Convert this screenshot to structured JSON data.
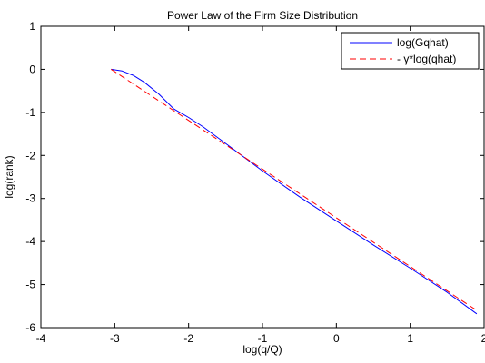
{
  "chart_data": {
    "type": "line",
    "title": "Power Law of the Firm Size Distribution",
    "xlabel": "log(q/Q)",
    "ylabel": "log(rank)",
    "xlim": [
      -4,
      2
    ],
    "ylim": [
      -6,
      1
    ],
    "xticks": [
      -4,
      -3,
      -2,
      -1,
      0,
      1,
      2
    ],
    "yticks": [
      -6,
      -5,
      -4,
      -3,
      -2,
      -1,
      0,
      1
    ],
    "grid": false,
    "legend": {
      "position": "top-right"
    },
    "series": [
      {
        "name": "log(Gqhat)",
        "color": "#0000ff",
        "style": "solid",
        "points": [
          [
            -3.05,
            0.0
          ],
          [
            -2.9,
            -0.04
          ],
          [
            -2.75,
            -0.14
          ],
          [
            -2.6,
            -0.3
          ],
          [
            -2.4,
            -0.58
          ],
          [
            -2.2,
            -0.92
          ],
          [
            -2.0,
            -1.12
          ],
          [
            -1.8,
            -1.34
          ],
          [
            -1.5,
            -1.72
          ],
          [
            -1.0,
            -2.36
          ],
          [
            -0.5,
            -2.96
          ],
          [
            0.0,
            -3.52
          ],
          [
            0.5,
            -4.08
          ],
          [
            1.0,
            -4.62
          ],
          [
            1.5,
            -5.18
          ],
          [
            1.9,
            -5.68
          ]
        ]
      },
      {
        "name": "- γ*log(qhat)",
        "color": "#ff0000",
        "style": "dashed",
        "points": [
          [
            -3.05,
            0.0
          ],
          [
            1.9,
            -5.6
          ]
        ]
      }
    ]
  }
}
